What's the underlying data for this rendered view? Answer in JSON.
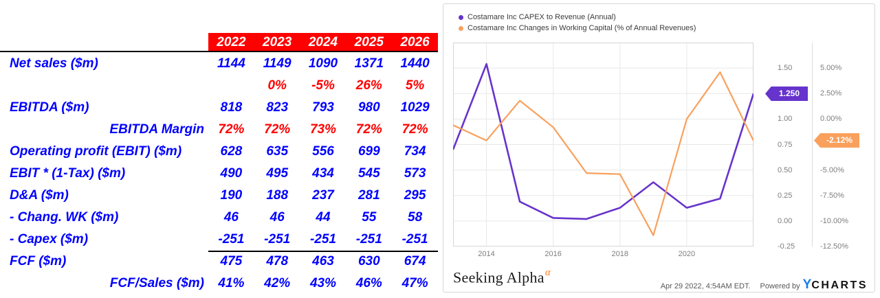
{
  "table": {
    "years": [
      "2022",
      "2023",
      "2024",
      "2025",
      "2026"
    ],
    "rows": [
      {
        "label": "Net sales ($m)",
        "align": "left",
        "value_color": "blue",
        "values": [
          "1144",
          "1149",
          "1090",
          "1371",
          "1440"
        ]
      },
      {
        "label": "",
        "align": "left",
        "value_color": "red",
        "values": [
          "",
          "0%",
          "-5%",
          "26%",
          "5%"
        ]
      },
      {
        "label": "EBITDA ($m)",
        "align": "left",
        "value_color": "blue",
        "values": [
          "818",
          "823",
          "793",
          "980",
          "1029"
        ]
      },
      {
        "label": "EBITDA Margin",
        "align": "right",
        "value_color": "red",
        "values": [
          "72%",
          "72%",
          "73%",
          "72%",
          "72%"
        ]
      },
      {
        "label": "Operating profit (EBIT) ($m)",
        "align": "left",
        "value_color": "blue",
        "values": [
          "628",
          "635",
          "556",
          "699",
          "734"
        ]
      },
      {
        "label": "EBIT * (1-Tax) ($m)",
        "align": "left",
        "value_color": "blue",
        "values": [
          "490",
          "495",
          "434",
          "545",
          "573"
        ]
      },
      {
        "label": "D&A ($m)",
        "align": "left",
        "value_color": "blue",
        "values": [
          "190",
          "188",
          "237",
          "281",
          "295"
        ]
      },
      {
        "label": "- Chang. WK ($m)",
        "align": "left",
        "value_color": "blue",
        "values": [
          "46",
          "46",
          "44",
          "55",
          "58"
        ]
      },
      {
        "label": "- Capex ($m)",
        "align": "left",
        "value_color": "blue",
        "values": [
          "-251",
          "-251",
          "-251",
          "-251",
          "-251"
        ],
        "rule_below": true
      },
      {
        "label": "FCF ($m)",
        "align": "left",
        "value_color": "blue",
        "values": [
          "475",
          "478",
          "463",
          "630",
          "674"
        ]
      },
      {
        "label": "FCF/Sales ($m)",
        "align": "right",
        "value_color": "blue",
        "values": [
          "41%",
          "42%",
          "43%",
          "46%",
          "47%"
        ]
      }
    ],
    "colors": {
      "blue": "#0000FF",
      "red": "#FF0000",
      "header_bg": "#FF0000",
      "header_text": "#FFFFFF"
    }
  },
  "chart": {
    "legend": [
      {
        "label": "Costamare Inc CAPEX to Revenue (Annual)",
        "color": "#6633CC"
      },
      {
        "label": "Costamare Inc Changes in Working Capital (% of Annual Revenues)",
        "color": "#F9A05C"
      }
    ],
    "x_ticks": [
      "2014",
      "2016",
      "2018",
      "2020"
    ],
    "left_axis_ticks": [
      "1.50",
      "1.25",
      "1.00",
      "0.75",
      "0.50",
      "0.25",
      "0.00",
      "-0.25"
    ],
    "right_axis_ticks": [
      "5.00%",
      "2.50%",
      "0.00%",
      "",
      "-5.00%",
      "-7.50%",
      "-10.00%",
      "-12.50%"
    ],
    "badges": {
      "left": {
        "text": "1.250",
        "color": "#6633CC"
      },
      "right": {
        "text": "-2.12%",
        "color": "#F9A05C"
      }
    },
    "footer": {
      "brand": "Seeking Alpha",
      "brand_sup": "α",
      "timestamp": "Apr 29 2022, 4:54AM EDT.",
      "powered_by": "Powered by",
      "ycharts_y": "Y",
      "ycharts_rest": "CHARTS",
      "ycharts_y_color": "#1a7ee6"
    },
    "colors": {
      "grid": "#e8e8e8",
      "plot_border": "#d5d5d5",
      "tick_text": "#7d7d7d"
    }
  },
  "chart_data": {
    "type": "line",
    "title": "",
    "x": [
      2013,
      2014,
      2015,
      2016,
      2017,
      2018,
      2019,
      2020,
      2021,
      2022
    ],
    "x_tick_years": [
      2014,
      2016,
      2018,
      2020
    ],
    "series": [
      {
        "name": "Costamare Inc CAPEX to Revenue (Annual)",
        "axis": "left",
        "color": "#6633CC",
        "values": [
          0.7,
          1.54,
          0.19,
          0.03,
          0.02,
          0.13,
          0.38,
          0.13,
          0.22,
          1.25
        ],
        "last_value_label": "1.250"
      },
      {
        "name": "Costamare Inc Changes in Working Capital (% of Annual Revenues)",
        "axis": "right",
        "unit": "%",
        "color": "#F9A05C",
        "values": [
          -0.6,
          -2.1,
          1.8,
          -0.8,
          -5.3,
          -5.4,
          -11.4,
          0.0,
          4.6,
          -2.12
        ],
        "last_value_label": "-2.12%"
      }
    ],
    "left_axis": {
      "label": "",
      "tick_values": [
        1.5,
        1.25,
        1.0,
        0.75,
        0.5,
        0.25,
        0.0,
        -0.25
      ],
      "range": [
        -0.25,
        1.75
      ]
    },
    "right_axis": {
      "label": "",
      "tick_values_percent": [
        5.0,
        2.5,
        0.0,
        -2.5,
        -5.0,
        -7.5,
        -10.0,
        -12.5
      ],
      "range": [
        -12.5,
        7.5
      ]
    },
    "x_range": [
      2013,
      2022
    ],
    "grid": true,
    "legend_position": "top-left"
  }
}
